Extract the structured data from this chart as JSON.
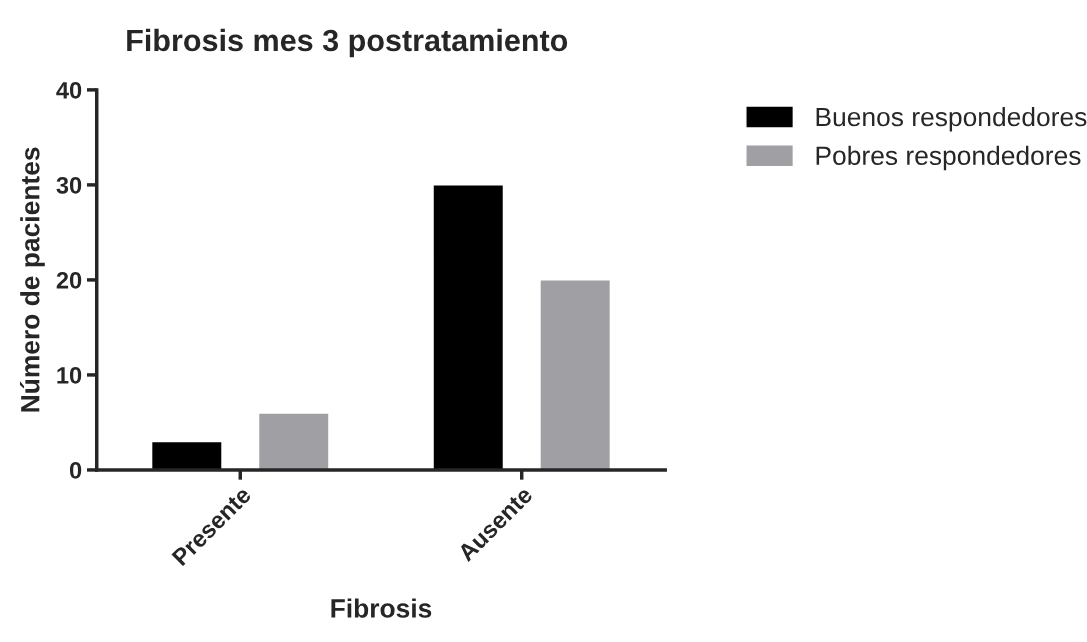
{
  "chart_data": {
    "type": "bar",
    "title": "Fibrosis mes 3 postratamiento",
    "xlabel": "Fibrosis",
    "ylabel": "Número de pacientes",
    "categories": [
      "Presente",
      "Ausente"
    ],
    "series": [
      {
        "name": "Buenos respondedores",
        "color": "#000000",
        "values": [
          3,
          30
        ]
      },
      {
        "name": "Pobres respondedores",
        "color": "#a0a0a4",
        "values": [
          6,
          20
        ]
      }
    ],
    "ylim": [
      0,
      40
    ],
    "yticks": [
      0,
      10,
      20,
      30,
      40
    ],
    "grid": false,
    "legend": "top right"
  }
}
